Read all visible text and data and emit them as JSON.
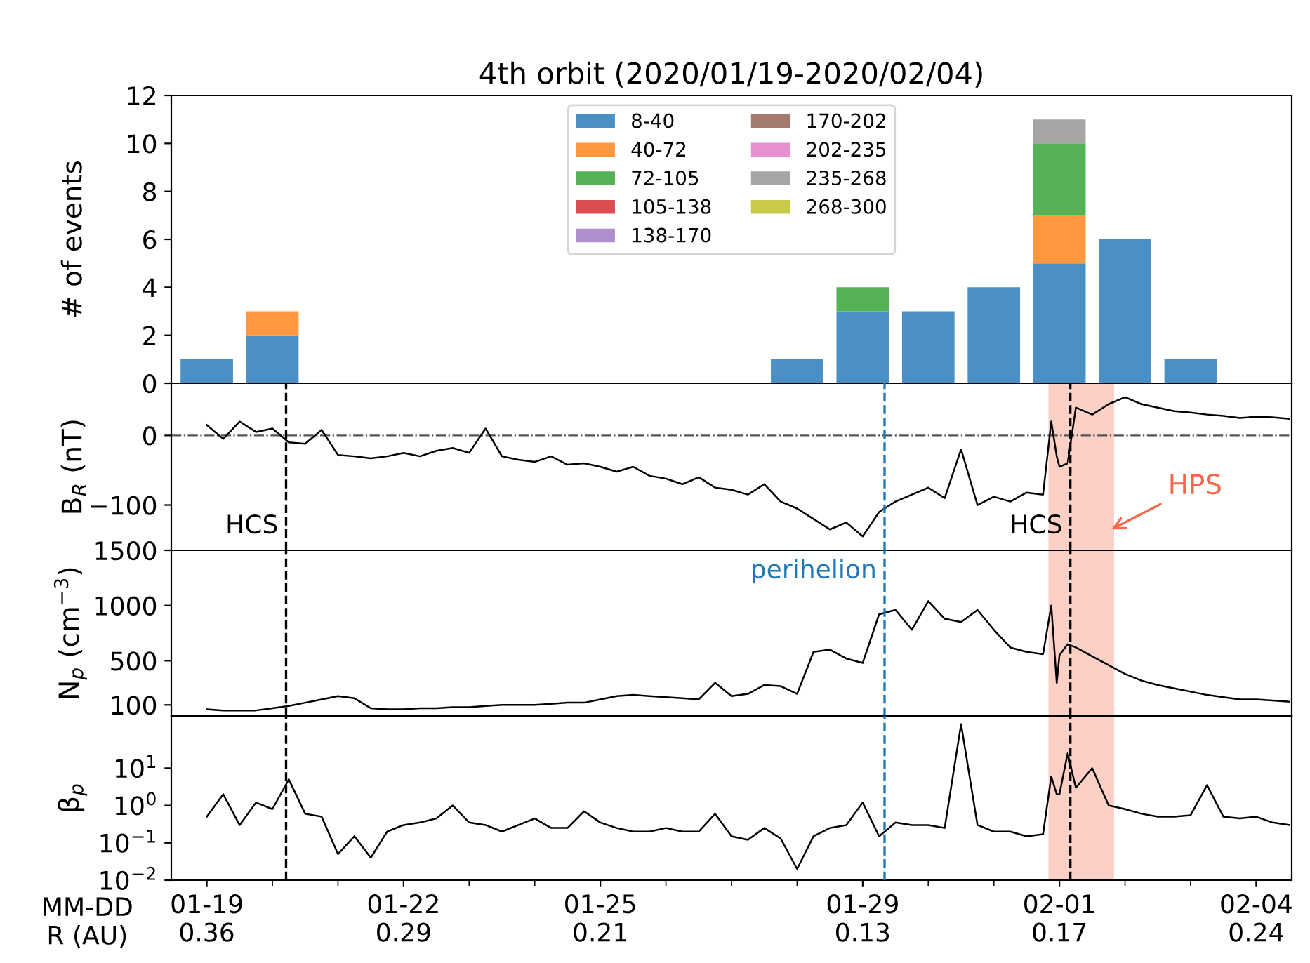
{
  "chart_data": [
    {
      "type": "bar",
      "title": "4th orbit (2020/01/19-2020/02/04)",
      "ylabel": "# of events",
      "stacked": true,
      "legend": "top",
      "tick_labels": "y",
      "x": [
        "2020-01-19",
        "2020-01-20",
        "2020-01-28",
        "2020-01-29",
        "2020-01-30",
        "2020-01-31",
        "2020-02-01",
        "2020-02-02",
        "2020-02-03"
      ],
      "series": [
        {
          "name": "8-40",
          "color": "#4a90c4",
          "values": [
            1,
            2,
            1,
            3,
            3,
            4,
            5,
            6,
            1
          ]
        },
        {
          "name": "40-72",
          "color": "#ff983e",
          "values": [
            0,
            1,
            0,
            0,
            0,
            0,
            2,
            0,
            0
          ]
        },
        {
          "name": "72-105",
          "color": "#55b155",
          "values": [
            0,
            0,
            0,
            1,
            0,
            0,
            3,
            0,
            0
          ]
        },
        {
          "name": "105-138",
          "color": "#da4e4f",
          "values": [
            0,
            0,
            0,
            0,
            0,
            0,
            0,
            0,
            0
          ]
        },
        {
          "name": "138-170",
          "color": "#ac8fcc",
          "values": [
            0,
            0,
            0,
            0,
            0,
            0,
            0,
            0,
            0
          ]
        },
        {
          "name": "170-202",
          "color": "#a47a6f",
          "values": [
            0,
            0,
            0,
            0,
            0,
            0,
            0,
            0,
            0
          ]
        },
        {
          "name": "202-235",
          "color": "#e890cf",
          "values": [
            0,
            0,
            0,
            0,
            0,
            0,
            0,
            0,
            0
          ]
        },
        {
          "name": "235-268",
          "color": "#a5a5a5",
          "values": [
            0,
            0,
            0,
            0,
            0,
            0,
            1,
            0,
            0
          ]
        },
        {
          "name": "268-300",
          "color": "#c9ca4a",
          "values": [
            0,
            0,
            0,
            0,
            0,
            0,
            0,
            0,
            0
          ]
        }
      ],
      "ylim": [
        0,
        12
      ],
      "yticks": [
        0,
        2,
        4,
        6,
        8,
        10,
        12
      ],
      "xlim": [
        "2020-01-18T11:00",
        "2020-02-04T13:00"
      ]
    },
    {
      "type": "line",
      "ylabel": "B$_{R}$ (nT)",
      "tick_labels": "y",
      "line_style": "solid",
      "x": [
        "2020-01-19T00:00",
        "2020-01-19T06:00",
        "2020-01-19T12:00",
        "2020-01-19T18:00",
        "2020-01-20T00:00",
        "2020-01-20T06:00",
        "2020-01-20T12:00",
        "2020-01-20T18:00",
        "2020-01-21T00:00",
        "2020-01-21T06:00",
        "2020-01-21T12:00",
        "2020-01-21T18:00",
        "2020-01-22T00:00",
        "2020-01-22T06:00",
        "2020-01-22T12:00",
        "2020-01-22T18:00",
        "2020-01-23T00:00",
        "2020-01-23T06:00",
        "2020-01-23T12:00",
        "2020-01-23T18:00",
        "2020-01-24T00:00",
        "2020-01-24T06:00",
        "2020-01-24T12:00",
        "2020-01-24T18:00",
        "2020-01-25T00:00",
        "2020-01-25T06:00",
        "2020-01-25T12:00",
        "2020-01-25T18:00",
        "2020-01-26T00:00",
        "2020-01-26T06:00",
        "2020-01-26T12:00",
        "2020-01-26T18:00",
        "2020-01-27T00:00",
        "2020-01-27T06:00",
        "2020-01-27T12:00",
        "2020-01-27T18:00",
        "2020-01-28T00:00",
        "2020-01-28T06:00",
        "2020-01-28T12:00",
        "2020-01-28T18:00",
        "2020-01-29T00:00",
        "2020-01-29T06:00",
        "2020-01-29T12:00",
        "2020-01-29T18:00",
        "2020-01-30T00:00",
        "2020-01-30T06:00",
        "2020-01-30T12:00",
        "2020-01-30T18:00",
        "2020-01-31T00:00",
        "2020-01-31T06:00",
        "2020-01-31T12:00",
        "2020-01-31T18:00",
        "2020-01-31T21:00",
        "2020-01-31T23:00",
        "2020-02-01T00:00",
        "2020-02-01T03:00",
        "2020-02-01T06:00",
        "2020-02-01T12:00",
        "2020-02-01T18:00",
        "2020-02-02T00:00",
        "2020-02-02T06:00",
        "2020-02-02T12:00",
        "2020-02-02T18:00",
        "2020-02-03T00:00",
        "2020-02-03T06:00",
        "2020-02-03T12:00",
        "2020-02-03T18:00",
        "2020-02-04T00:00",
        "2020-02-04T06:00",
        "2020-02-04T12:00"
      ],
      "series": [
        {
          "color": "#000000",
          "values": [
            15,
            -5,
            20,
            5,
            10,
            -10,
            -12,
            8,
            -28,
            -30,
            -33,
            -30,
            -25,
            -30,
            -22,
            -18,
            -25,
            10,
            -30,
            -35,
            -38,
            -30,
            -42,
            -40,
            -45,
            -52,
            -45,
            -58,
            -62,
            -70,
            -60,
            -75,
            -78,
            -85,
            -70,
            -95,
            -105,
            -120,
            -135,
            -125,
            -145,
            -110,
            -95,
            -85,
            -75,
            -90,
            -20,
            -100,
            -88,
            -95,
            -82,
            -85,
            20,
            -30,
            -45,
            -40,
            40,
            30,
            45,
            55,
            45,
            40,
            35,
            33,
            30,
            28,
            25,
            27,
            26,
            24
          ]
        }
      ],
      "ylim": [
        -165,
        75
      ],
      "yticks": [
        {
          "value": -100,
          "label": "−100"
        },
        0
      ],
      "xlim": [
        "2020-01-18T11:00",
        "2020-02-04T13:00"
      ],
      "ref_lines": [
        {
          "axis": "y",
          "value": 0,
          "label": null,
          "color": "#555555",
          "line_style": "dashdot"
        },
        {
          "axis": "x",
          "value": "2020-01-20T05:00",
          "label": "HCS",
          "color": "#000000",
          "line_style": "dashed"
        },
        {
          "axis": "x",
          "value": "2020-01-29T08:00",
          "label": null,
          "color": "#1f77b4",
          "line_style": "dashed"
        },
        {
          "axis": "x",
          "value": "2020-02-01T04:00",
          "label": "HCS",
          "color": "#000000",
          "line_style": "dashed"
        }
      ],
      "bands": [
        {
          "axis": "x",
          "from": "2020-01-31T20:00",
          "to": "2020-02-01T20:00",
          "label": null,
          "color": "#fdd0c6"
        }
      ],
      "annotations": [
        {
          "text": "HPS",
          "x": "2020-02-01T19:00",
          "y": -135
        }
      ]
    },
    {
      "type": "line",
      "ylabel": "N$_{p}$ (cm$^{−3}$)",
      "tick_labels": "y",
      "line_style": "solid",
      "x": [
        "2020-01-19T00:00",
        "2020-01-19T06:00",
        "2020-01-19T12:00",
        "2020-01-19T18:00",
        "2020-01-20T00:00",
        "2020-01-20T06:00",
        "2020-01-20T12:00",
        "2020-01-20T18:00",
        "2020-01-21T00:00",
        "2020-01-21T06:00",
        "2020-01-21T12:00",
        "2020-01-21T18:00",
        "2020-01-22T00:00",
        "2020-01-22T06:00",
        "2020-01-22T12:00",
        "2020-01-22T18:00",
        "2020-01-23T00:00",
        "2020-01-23T06:00",
        "2020-01-23T12:00",
        "2020-01-23T18:00",
        "2020-01-24T00:00",
        "2020-01-24T06:00",
        "2020-01-24T12:00",
        "2020-01-24T18:00",
        "2020-01-25T00:00",
        "2020-01-25T06:00",
        "2020-01-25T12:00",
        "2020-01-25T18:00",
        "2020-01-26T00:00",
        "2020-01-26T06:00",
        "2020-01-26T12:00",
        "2020-01-26T18:00",
        "2020-01-27T00:00",
        "2020-01-27T06:00",
        "2020-01-27T12:00",
        "2020-01-27T18:00",
        "2020-01-28T00:00",
        "2020-01-28T06:00",
        "2020-01-28T12:00",
        "2020-01-28T18:00",
        "2020-01-29T00:00",
        "2020-01-29T06:00",
        "2020-01-29T12:00",
        "2020-01-29T18:00",
        "2020-01-30T00:00",
        "2020-01-30T06:00",
        "2020-01-30T12:00",
        "2020-01-30T18:00",
        "2020-01-31T00:00",
        "2020-01-31T06:00",
        "2020-01-31T12:00",
        "2020-01-31T18:00",
        "2020-01-31T21:00",
        "2020-01-31T23:00",
        "2020-02-01T00:00",
        "2020-02-01T03:00",
        "2020-02-01T06:00",
        "2020-02-01T12:00",
        "2020-02-01T18:00",
        "2020-02-02T00:00",
        "2020-02-02T06:00",
        "2020-02-02T12:00",
        "2020-02-02T18:00",
        "2020-02-03T00:00",
        "2020-02-03T06:00",
        "2020-02-03T12:00",
        "2020-02-03T18:00",
        "2020-02-04T00:00",
        "2020-02-04T06:00",
        "2020-02-04T12:00"
      ],
      "series": [
        {
          "color": "#000000",
          "values": [
            60,
            50,
            50,
            50,
            70,
            90,
            120,
            150,
            180,
            160,
            70,
            60,
            60,
            70,
            70,
            80,
            80,
            90,
            100,
            100,
            100,
            110,
            120,
            120,
            150,
            180,
            190,
            180,
            170,
            160,
            150,
            300,
            180,
            200,
            280,
            270,
            200,
            580,
            600,
            520,
            480,
            920,
            960,
            780,
            1040,
            880,
            850,
            960,
            780,
            620,
            580,
            560,
            1000,
            300,
            550,
            650,
            620,
            540,
            460,
            380,
            320,
            280,
            250,
            220,
            190,
            170,
            150,
            150,
            140,
            130
          ]
        }
      ],
      "ylim": [
        0,
        1500
      ],
      "yticks": [
        100,
        500,
        1000,
        1500
      ],
      "xlim": [
        "2020-01-18T11:00",
        "2020-02-04T13:00"
      ],
      "ref_lines": [
        {
          "axis": "x",
          "value": "2020-01-20T05:00",
          "label": null,
          "color": "#000000",
          "line_style": "dashed"
        },
        {
          "axis": "x",
          "value": "2020-01-29T08:00",
          "label": "perihelion",
          "color": "#1f77b4",
          "line_style": "dashed"
        },
        {
          "axis": "x",
          "value": "2020-02-01T04:00",
          "label": null,
          "color": "#000000",
          "line_style": "dashed"
        }
      ],
      "bands": [
        {
          "axis": "x",
          "from": "2020-01-31T20:00",
          "to": "2020-02-01T20:00",
          "label": null,
          "color": "#fdd0c6"
        }
      ]
    },
    {
      "type": "line",
      "ylabel": "β$_{p}$",
      "xlabel": "MM-DD\nR (AU)",
      "log": "y",
      "line_style": "solid",
      "x": [
        "2020-01-19T00:00",
        "2020-01-19T06:00",
        "2020-01-19T12:00",
        "2020-01-19T18:00",
        "2020-01-20T00:00",
        "2020-01-20T06:00",
        "2020-01-20T12:00",
        "2020-01-20T18:00",
        "2020-01-21T00:00",
        "2020-01-21T06:00",
        "2020-01-21T12:00",
        "2020-01-21T18:00",
        "2020-01-22T00:00",
        "2020-01-22T06:00",
        "2020-01-22T12:00",
        "2020-01-22T18:00",
        "2020-01-23T00:00",
        "2020-01-23T06:00",
        "2020-01-23T12:00",
        "2020-01-23T18:00",
        "2020-01-24T00:00",
        "2020-01-24T06:00",
        "2020-01-24T12:00",
        "2020-01-24T18:00",
        "2020-01-25T00:00",
        "2020-01-25T06:00",
        "2020-01-25T12:00",
        "2020-01-25T18:00",
        "2020-01-26T00:00",
        "2020-01-26T06:00",
        "2020-01-26T12:00",
        "2020-01-26T18:00",
        "2020-01-27T00:00",
        "2020-01-27T06:00",
        "2020-01-27T12:00",
        "2020-01-27T18:00",
        "2020-01-28T00:00",
        "2020-01-28T06:00",
        "2020-01-28T12:00",
        "2020-01-28T18:00",
        "2020-01-29T00:00",
        "2020-01-29T06:00",
        "2020-01-29T12:00",
        "2020-01-29T18:00",
        "2020-01-30T00:00",
        "2020-01-30T06:00",
        "2020-01-30T12:00",
        "2020-01-30T18:00",
        "2020-01-31T00:00",
        "2020-01-31T06:00",
        "2020-01-31T12:00",
        "2020-01-31T18:00",
        "2020-01-31T21:00",
        "2020-01-31T23:00",
        "2020-02-01T00:00",
        "2020-02-01T03:00",
        "2020-02-01T06:00",
        "2020-02-01T12:00",
        "2020-02-01T18:00",
        "2020-02-02T00:00",
        "2020-02-02T06:00",
        "2020-02-02T12:00",
        "2020-02-02T18:00",
        "2020-02-03T00:00",
        "2020-02-03T06:00",
        "2020-02-03T12:00",
        "2020-02-03T18:00",
        "2020-02-04T00:00",
        "2020-02-04T06:00",
        "2020-02-04T12:00"
      ],
      "series": [
        {
          "color": "#000000",
          "values": [
            0.5,
            2.0,
            0.3,
            1.2,
            0.8,
            5.0,
            0.6,
            0.5,
            0.05,
            0.15,
            0.04,
            0.2,
            0.3,
            0.35,
            0.45,
            1.0,
            0.35,
            0.3,
            0.2,
            0.3,
            0.45,
            0.25,
            0.25,
            0.7,
            0.35,
            0.25,
            0.2,
            0.2,
            0.25,
            0.2,
            0.2,
            0.6,
            0.15,
            0.12,
            0.25,
            0.13,
            0.02,
            0.15,
            0.25,
            0.3,
            1.2,
            0.15,
            0.35,
            0.3,
            0.3,
            0.25,
            150,
            0.3,
            0.2,
            0.2,
            0.15,
            0.17,
            6,
            2,
            2.0,
            25,
            3,
            10,
            1.0,
            0.8,
            0.6,
            0.5,
            0.5,
            0.55,
            3.5,
            0.5,
            0.45,
            0.5,
            0.35,
            0.3
          ]
        }
      ],
      "ylim": [
        0.01,
        250
      ],
      "yticks": [
        {
          "value": 0.01,
          "label": "10$^{−2}$"
        },
        {
          "value": 0.1,
          "label": "10$^{−1}$"
        },
        {
          "value": 1,
          "label": "10$^{0}$"
        },
        {
          "value": 10,
          "label": "10$^{1}$"
        }
      ],
      "xlim": [
        "2020-01-18T11:00",
        "2020-02-04T13:00"
      ],
      "xticks": [
        {
          "value": "2020-01-19",
          "label": "01-19\n0.36"
        },
        {
          "value": "2020-01-20",
          "label": null
        },
        {
          "value": "2020-01-21",
          "label": null
        },
        {
          "value": "2020-01-22",
          "label": "01-22\n0.29"
        },
        {
          "value": "2020-01-23",
          "label": null
        },
        {
          "value": "2020-01-24",
          "label": null
        },
        {
          "value": "2020-01-25",
          "label": "01-25\n0.21"
        },
        {
          "value": "2020-01-26",
          "label": null
        },
        {
          "value": "2020-01-27",
          "label": null
        },
        {
          "value": "2020-01-28",
          "label": null
        },
        {
          "value": "2020-01-29",
          "label": "01-29\n0.13"
        },
        {
          "value": "2020-01-30",
          "label": null
        },
        {
          "value": "2020-01-31",
          "label": null
        },
        {
          "value": "2020-02-01",
          "label": "02-01\n0.17"
        },
        {
          "value": "2020-02-02",
          "label": null
        },
        {
          "value": "2020-02-03",
          "label": null
        },
        {
          "value": "2020-02-04",
          "label": "02-04\n0.24"
        }
      ],
      "ref_lines": [
        {
          "axis": "x",
          "value": "2020-01-20T05:00",
          "label": null,
          "color": "#000000",
          "line_style": "dashed"
        },
        {
          "axis": "x",
          "value": "2020-01-29T08:00",
          "label": null,
          "color": "#1f77b4",
          "line_style": "dashed"
        },
        {
          "axis": "x",
          "value": "2020-02-01T04:00",
          "label": null,
          "color": "#000000",
          "line_style": "dashed"
        }
      ],
      "bands": [
        {
          "axis": "x",
          "from": "2020-01-31T20:00",
          "to": "2020-02-01T20:00",
          "label": null,
          "color": "#fdd0c6"
        }
      ]
    }
  ]
}
